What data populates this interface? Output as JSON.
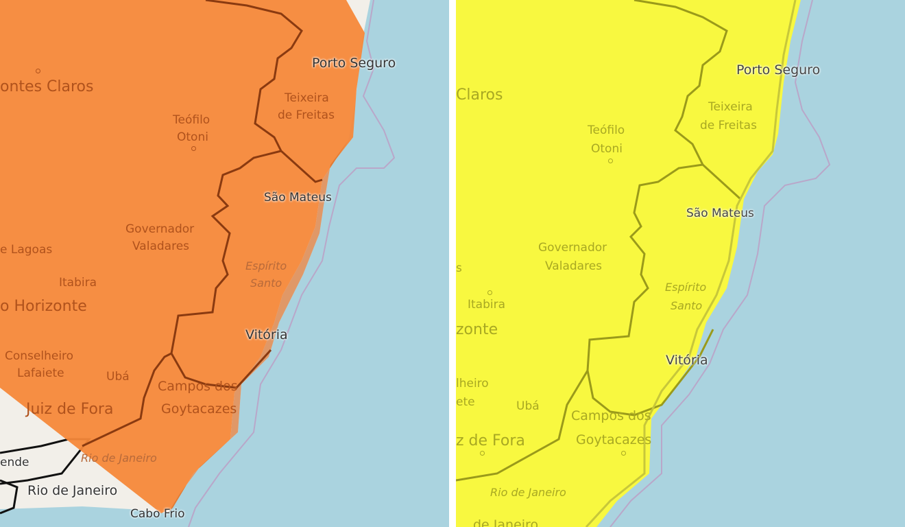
{
  "panels": [
    {
      "alert_color": "#f5883a",
      "labels": {
        "porto_seguro": "Porto Seguro",
        "montes_claros": "ontes Claros",
        "teixeira": "Teixeira",
        "de_freitas": "de Freitas",
        "teofilo": "Teófilo",
        "otoni": "Otoni",
        "sao_mateus": "São Mateus",
        "governador": "Governador",
        "valadares": "Valadares",
        "lagoas": "e Lagoas",
        "espirito": "Espírito",
        "santo": "Santo",
        "itabira": "Itabira",
        "horizonte": "o Horizonte",
        "vitoria": "Vitória",
        "conselheiro": "Conselheiro",
        "lafaiete": "Lafaiete",
        "uba": "Ubá",
        "campos": "Campos dos",
        "goytacazes": "Goytacazes",
        "juiz_de_fora": "Juiz de Fora",
        "rio_state": "Rio de Janeiro",
        "resende": "ende",
        "rio_city": "Rio de Janeiro",
        "cabo_frio": "Cabo Frio"
      }
    },
    {
      "alert_color": "#f8f840",
      "labels": {
        "porto_seguro": "Porto Seguro",
        "claros": "Claros",
        "teixeira": "Teixeira",
        "de_freitas": "de Freitas",
        "teofilo": "Teófilo",
        "otoni": "Otoni",
        "sao_mateus": "São Mateus",
        "governador": "Governador",
        "valadares": "Valadares",
        "lagoas": "s",
        "espirito": "Espírito",
        "santo": "Santo",
        "itabira": "Itabira",
        "horizonte": "zonte",
        "vitoria": "Vitória",
        "conselheiro": "lheiro",
        "lafaiete": "ete",
        "uba": "Ubá",
        "campos": "Campos dos",
        "goytacazes": "Goytacazes",
        "juiz_de_fora": "z de Fora",
        "rio_state": "Rio de Janeiro",
        "rio_city": "de Janeiro"
      }
    }
  ],
  "colors": {
    "sea": "#aad3df",
    "land": "#f2efe9",
    "orange_alert": "#f5883a",
    "yellow_alert": "#f8f840"
  }
}
